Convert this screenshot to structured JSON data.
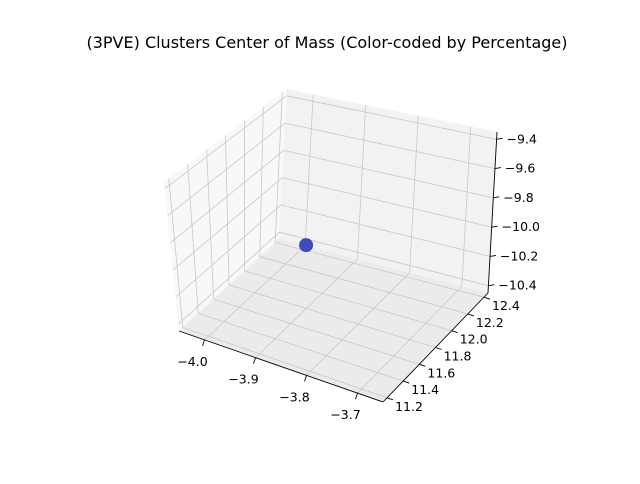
{
  "chart_data": {
    "type": "scatter",
    "projection": "3d",
    "title": "(3PVE) Clusters Center of Mass (Color-coded by Percentage)",
    "xlabel": "",
    "ylabel": "",
    "zlabel": "",
    "x_ticks": [
      "−4.0",
      "−3.9",
      "−3.8",
      "−3.7"
    ],
    "y_ticks": [
      "11.2",
      "11.4",
      "11.6",
      "11.8",
      "12.0",
      "12.2",
      "12.4"
    ],
    "z_ticks": [
      "−10.4",
      "−10.2",
      "−10.0",
      "−9.8",
      "−9.6",
      "−9.4"
    ],
    "grid": true,
    "points": [
      {
        "x": -3.9,
        "y": 11.8,
        "z": -10.0,
        "color": "#3b4cc0"
      }
    ]
  },
  "colors": {
    "pane_left": "#f8f8f8",
    "pane_back": "#f2f2f2",
    "pane_floor": "#ebebeb",
    "grid": "#c8c8c8",
    "axis": "#000000"
  }
}
